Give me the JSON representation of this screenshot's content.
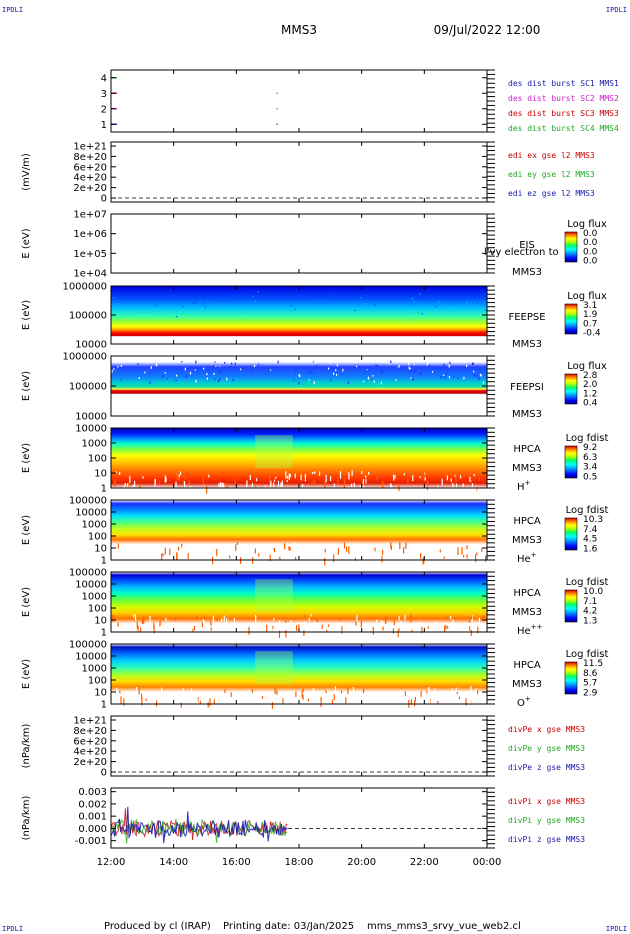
{
  "header": {
    "corner_left": "IPDLI",
    "corner_right": "IPDLI",
    "title": "MMS3",
    "datetime": "09/Jul/2022 12:00"
  },
  "footer": {
    "corner_left": "IPDLI",
    "corner_right": "IPDLI",
    "produced_by": "Produced by cl (IRAP)",
    "printing_date": "Printing date: 03/Jan/2025",
    "filename": "mms_mms3_srvy_vue_web2.cl"
  },
  "colors": {
    "MMS1": "#1a1aaa",
    "MMS2": "#cc22cc",
    "MMS3": "#cc0000",
    "MMS4": "#22aa22",
    "x": "#cc0000",
    "y": "#22aa22",
    "z": "#1a1aaa",
    "spectrogram_scale": [
      "#000090",
      "#0000ff",
      "#0080ff",
      "#00e0ff",
      "#00ff80",
      "#a0ff00",
      "#ffff00",
      "#ffa000",
      "#ff3000",
      "#d00000"
    ]
  },
  "chart_data": {
    "type": "multi-panel time series and spectrograms",
    "x_axis": {
      "range": [
        "12:00",
        "00:00"
      ],
      "ticks": [
        "12:00",
        "14:00",
        "16:00",
        "18:00",
        "20:00",
        "22:00",
        "00:00"
      ],
      "range_hours": [
        12,
        24
      ]
    },
    "panels": [
      {
        "id": "des-burst",
        "type": "scatter",
        "ylabel": "",
        "yticks": [
          "4",
          "3",
          "2",
          "1"
        ],
        "ylim": [
          0.5,
          4.5
        ],
        "series": [
          {
            "name": "des dist burst SC1 MMS1",
            "color": "#1a1aaa",
            "y": 1,
            "points": [
              [
                12.1,
                1
              ],
              [
                17.3,
                1
              ]
            ]
          },
          {
            "name": "des dist burst SC2 MMS2",
            "color": "#cc22cc",
            "y": 2,
            "points": [
              [
                12.1,
                2
              ],
              [
                17.3,
                2
              ]
            ]
          },
          {
            "name": "des dist burst SC3 MMS3",
            "color": "#cc0000",
            "y": 3,
            "points": [
              [
                12.1,
                3
              ],
              [
                17.3,
                3
              ]
            ]
          },
          {
            "name": "des dist burst SC4 MMS4",
            "color": "#22aa22",
            "y": 4,
            "points": [
              [
                12.1,
                4
              ]
            ]
          }
        ]
      },
      {
        "id": "edi-e",
        "type": "line",
        "ylabel": "(mV/m)",
        "yticks": [
          "1e+21",
          "8e+20",
          "6e+20",
          "4e+20",
          "2e+20",
          "0"
        ],
        "ylim": [
          0,
          1e+21
        ],
        "series": [
          {
            "name": "edi ex gse l2 MMS3",
            "color": "#cc0000"
          },
          {
            "name": "edi ey gse l2 MMS3",
            "color": "#22aa22"
          },
          {
            "name": "edi ez gse l2 MMS3",
            "color": "#1a1aaa"
          }
        ]
      },
      {
        "id": "eis",
        "type": "heatmap",
        "ylabel": "E (eV)",
        "yticks": [
          "1e+07",
          "1e+06",
          "1e+05",
          "1e+04"
        ],
        "ylim": [
          10000,
          10000000
        ],
        "instrument": [
          "EIS",
          "MMS3"
        ],
        "overlay_text": "l'vy electron to",
        "colorbar": {
          "title": "Log flux",
          "ticks": [
            "0.0",
            "0.0",
            "0.0",
            "0.0"
          ]
        }
      },
      {
        "id": "feeps-e",
        "type": "heatmap",
        "ylabel": "E (eV)",
        "yticks": [
          "1000000",
          "100000",
          "10000"
        ],
        "ylim": [
          10000,
          1000000
        ],
        "instrument": [
          "FEEPSE",
          "MMS3"
        ],
        "colorbar": {
          "title": "Log flux",
          "ticks": [
            "3.1",
            "1.9",
            "0.7",
            "-0.4"
          ]
        }
      },
      {
        "id": "feeps-i",
        "type": "heatmap",
        "ylabel": "E (eV)",
        "yticks": [
          "1000000",
          "100000",
          "10000"
        ],
        "ylim": [
          10000,
          1000000
        ],
        "instrument": [
          "FEEPSI",
          "MMS3"
        ],
        "colorbar": {
          "title": "Log flux",
          "ticks": [
            "2.8",
            "2.0",
            "1.2",
            "0.4"
          ]
        }
      },
      {
        "id": "hpca-h",
        "type": "heatmap",
        "ylabel": "E (eV)",
        "yticks": [
          "10000",
          "1000",
          "100",
          "10",
          "1"
        ],
        "ylim": [
          1,
          40000
        ],
        "instrument": [
          "HPCA",
          "MMS3"
        ],
        "species": {
          "base": "H",
          "sup": "+"
        },
        "colorbar": {
          "title": "Log fdist",
          "ticks": [
            "9.2",
            "6.3",
            "3.4",
            "0.5"
          ]
        }
      },
      {
        "id": "hpca-he1",
        "type": "heatmap",
        "ylabel": "E (eV)",
        "yticks": [
          "100000",
          "10000",
          "1000",
          "100",
          "10",
          "1"
        ],
        "ylim": [
          1,
          100000
        ],
        "instrument": [
          "HPCA",
          "MMS3"
        ],
        "species": {
          "base": "He",
          "sup": "+"
        },
        "colorbar": {
          "title": "Log fdist",
          "ticks": [
            "10.3",
            "7.4",
            "4.5",
            "1.6"
          ]
        }
      },
      {
        "id": "hpca-he2",
        "type": "heatmap",
        "ylabel": "E (eV)",
        "yticks": [
          "100000",
          "10000",
          "1000",
          "100",
          "10",
          "1"
        ],
        "ylim": [
          1,
          100000
        ],
        "instrument": [
          "HPCA",
          "MMS3"
        ],
        "species": {
          "base": "He",
          "sup": "++"
        },
        "colorbar": {
          "title": "Log fdist",
          "ticks": [
            "10.0",
            "7.1",
            "4.2",
            "1.3"
          ]
        }
      },
      {
        "id": "hpca-o",
        "type": "heatmap",
        "ylabel": "E (eV)",
        "yticks": [
          "100000",
          "10000",
          "1000",
          "100",
          "10",
          "1"
        ],
        "ylim": [
          1,
          100000
        ],
        "instrument": [
          "HPCA",
          "MMS3"
        ],
        "species": {
          "base": "O",
          "sup": "+"
        },
        "colorbar": {
          "title": "Log fdist",
          "ticks": [
            "11.5",
            "8.6",
            "5.7",
            "2.9"
          ]
        }
      },
      {
        "id": "divpe",
        "type": "line",
        "ylabel": "(nPa/km)",
        "yticks": [
          "1e+21",
          "8e+20",
          "6e+20",
          "4e+20",
          "2e+20",
          "0"
        ],
        "ylim": [
          0,
          1e+21
        ],
        "series": [
          {
            "name": "divPe x gse MMS3",
            "color": "#cc0000"
          },
          {
            "name": "divPe y gse MMS3",
            "color": "#22aa22"
          },
          {
            "name": "divPe z gse MMS3",
            "color": "#1a1aaa"
          }
        ]
      },
      {
        "id": "divpi",
        "type": "line",
        "ylabel": "(nPa/km)",
        "yticks": [
          "0.003",
          "0.002",
          "0.001",
          "0.000",
          "-0.001"
        ],
        "ylim": [
          -0.0016,
          0.0033
        ],
        "data_range_hours": [
          12,
          17.65
        ],
        "series": [
          {
            "name": "divPi x gse MMS3",
            "color": "#cc0000"
          },
          {
            "name": "divPi y gse MMS3",
            "color": "#22aa22"
          },
          {
            "name": "divPi z gse MMS3",
            "color": "#1a1aaa"
          }
        ]
      }
    ]
  }
}
